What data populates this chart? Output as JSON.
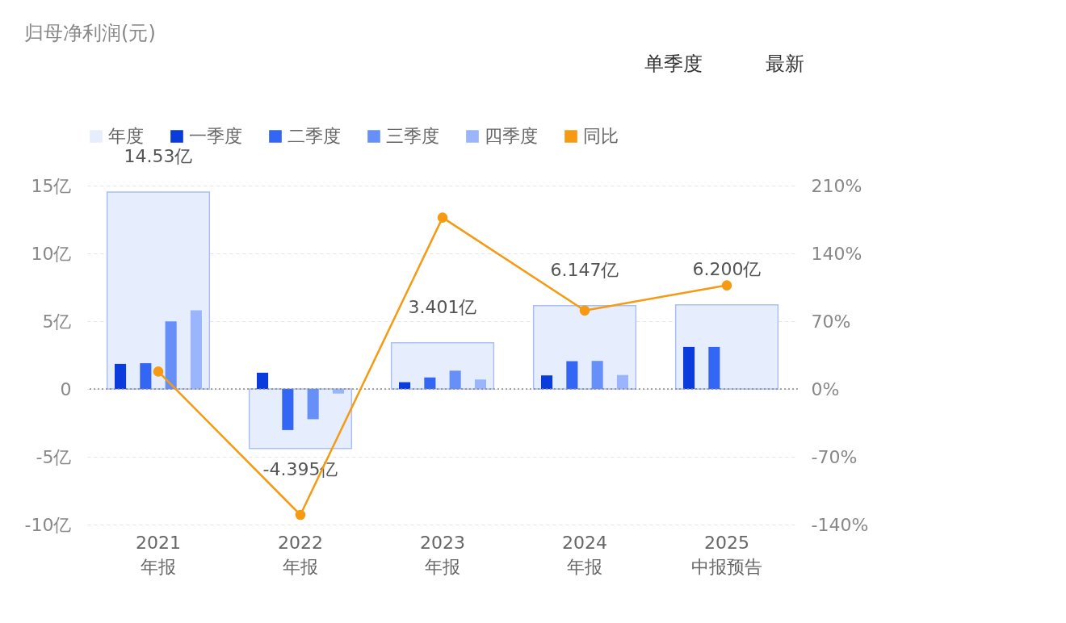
{
  "chart_data": {
    "type": "bar",
    "title": "归母净利润(元)",
    "categories": [
      "2021\n年报",
      "2022\n年报",
      "2023\n年报",
      "2024\n年报",
      "2025\n中报预告"
    ],
    "series": [
      {
        "name": "年度",
        "color": "#e6edfc",
        "values": [
          14.53,
          -4.395,
          3.401,
          6.147,
          6.2
        ],
        "value_labels": [
          "14.53亿",
          "-4.395亿",
          "3.401亿",
          "6.147亿",
          "6.200亿"
        ]
      },
      {
        "name": "一季度",
        "color": "#0a3bdc",
        "values": [
          1.85,
          1.2,
          0.5,
          1.0,
          3.1
        ]
      },
      {
        "name": "二季度",
        "color": "#3366f5",
        "values": [
          1.9,
          -3.03,
          0.85,
          2.05,
          3.1
        ]
      },
      {
        "name": "三季度",
        "color": "#6690f8",
        "values": [
          4.98,
          -2.23,
          1.35,
          2.07,
          null
        ]
      },
      {
        "name": "四季度",
        "color": "#9ab5fb",
        "values": [
          5.8,
          -0.34,
          0.7,
          1.03,
          null
        ]
      },
      {
        "name": "同比",
        "type": "line",
        "axis": "y2",
        "color": "#f59a12",
        "values": [
          18,
          -130,
          177,
          81,
          107
        ]
      }
    ],
    "ylim": [
      -10,
      15
    ],
    "yticks": [
      {
        "value": -10,
        "label": "-10亿"
      },
      {
        "value": -5,
        "label": "-5亿"
      },
      0,
      {
        "value": 5,
        "label": "5亿"
      },
      {
        "value": 10,
        "label": "10亿"
      },
      {
        "value": 15,
        "label": "15亿"
      }
    ],
    "y2lim": [
      -140,
      210
    ],
    "y2ticks": [
      {
        "value": -140,
        "label": "-140%"
      },
      {
        "value": -70,
        "label": "-70%"
      },
      {
        "value": 0,
        "label": "0%"
      },
      {
        "value": 70,
        "label": "70%"
      },
      {
        "value": 140,
        "label": "140%"
      },
      {
        "value": 210,
        "label": "210%"
      }
    ],
    "ref_lines": [
      {
        "axis": "y",
        "value": 0,
        "color": "#888888",
        "line_style": "dotted"
      }
    ],
    "grid": "y",
    "legend": "top",
    "marker": "circle",
    "annotations": [
      "单季度",
      "最新"
    ]
  }
}
